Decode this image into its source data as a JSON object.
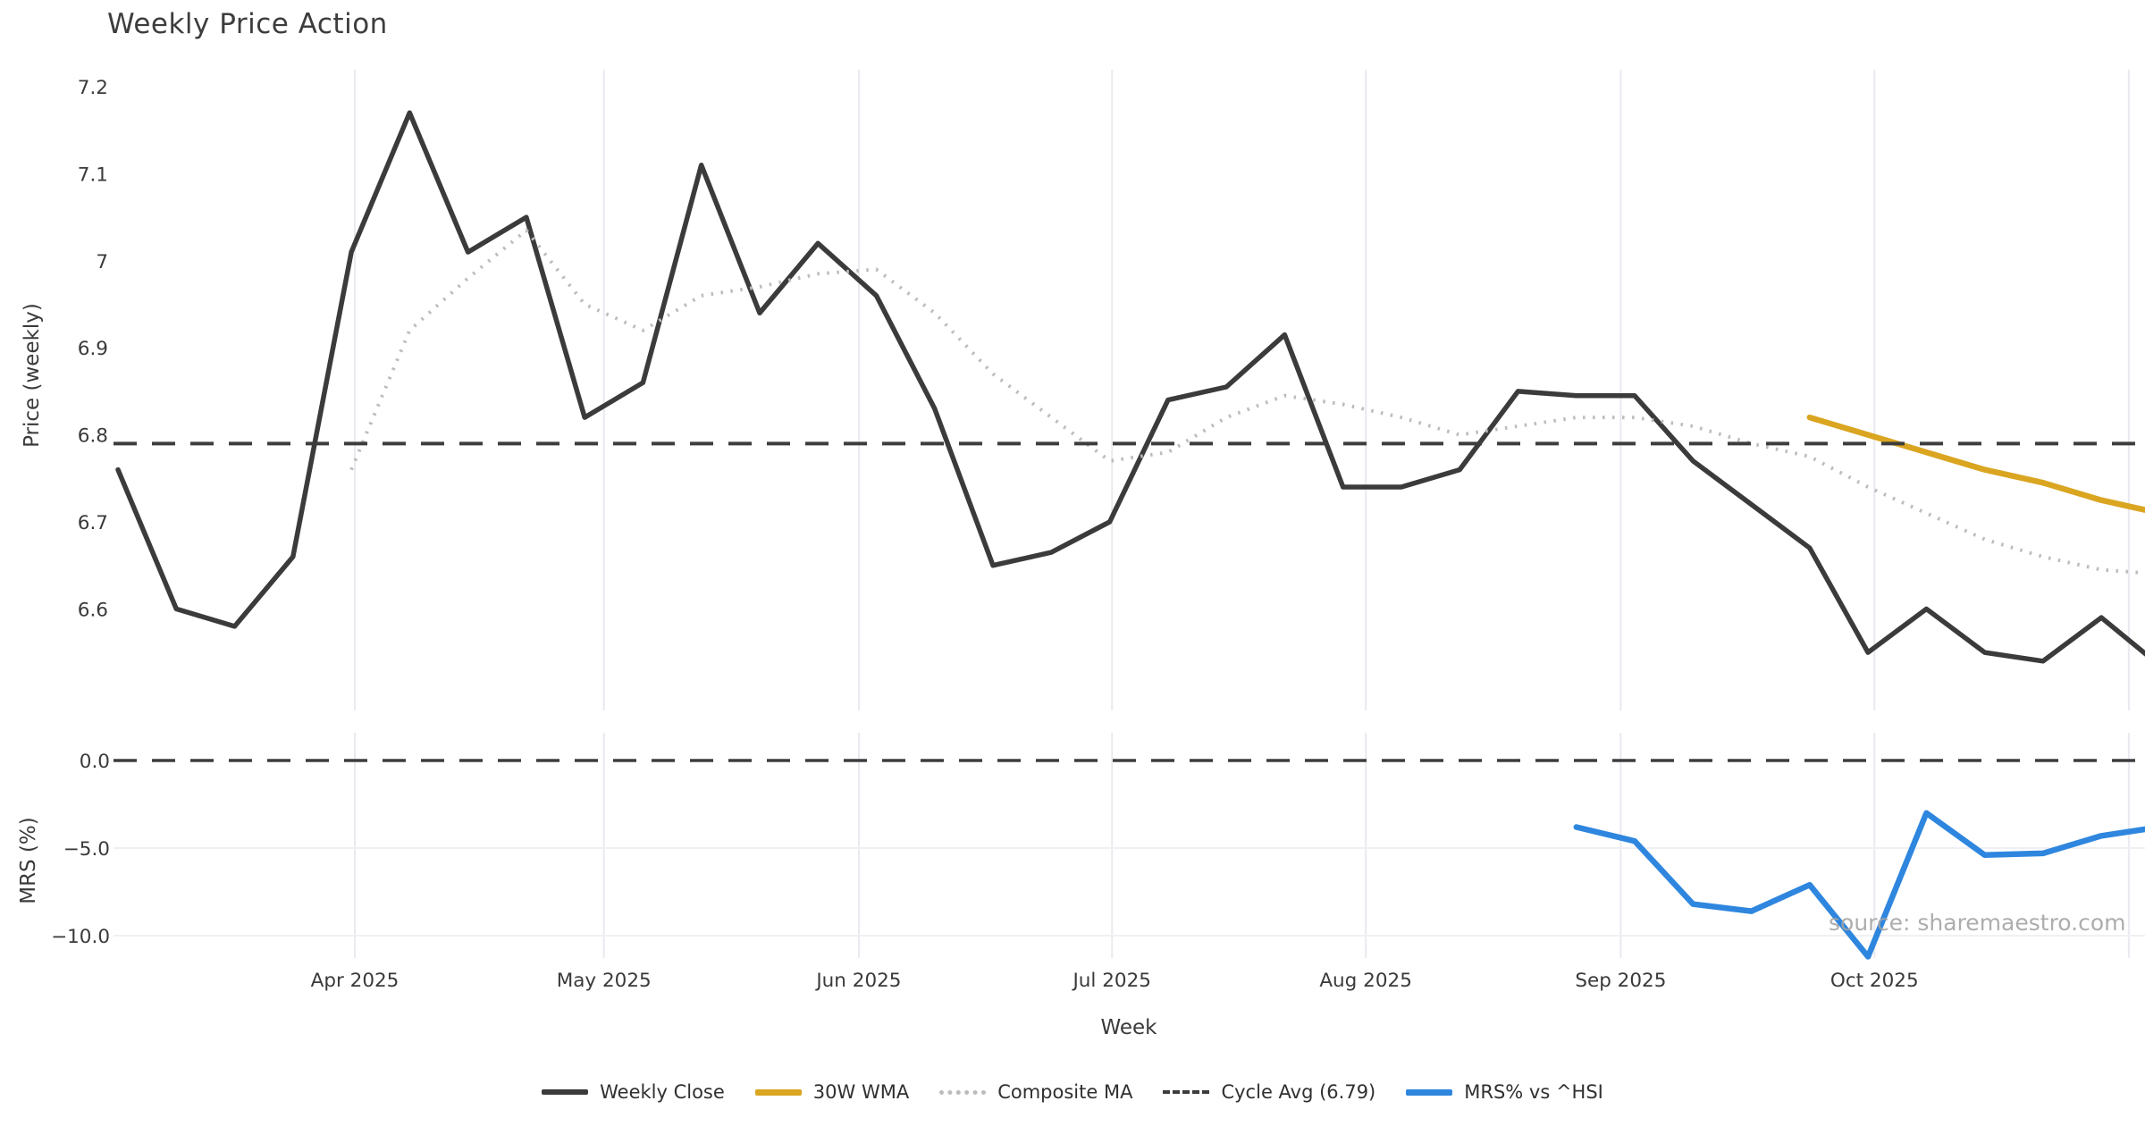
{
  "title": "Weekly Price Action",
  "source_note": "source: sharemaestro.com",
  "legend": {
    "entries": [
      {
        "label": "Weekly Close",
        "swatch": "solid-dark"
      },
      {
        "label": "30W WMA",
        "swatch": "solid-gold"
      },
      {
        "label": "Composite MA",
        "swatch": "dotted"
      },
      {
        "label": "Cycle Avg (6.79)",
        "swatch": "dashed"
      },
      {
        "label": "MRS% vs ^HSI",
        "swatch": "solid-blue"
      }
    ]
  },
  "chart_data": {
    "type": "line",
    "title": "Weekly Price Action",
    "xlabel": "Week",
    "x_axis": {
      "tick_labels": [
        "Apr 2025",
        "May 2025",
        "Jun 2025",
        "Jul 2025",
        "Aug 2025",
        "Sep 2025",
        "Oct 2025"
      ],
      "tick_week_positions": [
        4.06,
        8.33,
        12.7,
        17.04,
        21.39,
        25.76,
        30.11
      ],
      "extra_gridline_week_positions": [
        34.47
      ],
      "num_weeks": 36,
      "grid": true
    },
    "price_panel": {
      "ylabel": "Price (weekly)",
      "ytick_labels": [
        "7.2",
        "7.1",
        "7",
        "6.9",
        "6.8",
        "6.7",
        "6.6"
      ],
      "ytick_values": [
        7.2,
        7.1,
        7.0,
        6.9,
        6.8,
        6.7,
        6.6
      ],
      "ylim": [
        6.49,
        7.235
      ]
    },
    "mrs_panel": {
      "ylabel": "MRS (%)",
      "ytick_labels": [
        "0.0",
        "−5.0",
        "−10.0"
      ],
      "ytick_values": [
        0,
        -5,
        -10
      ],
      "ylim": [
        -11.6,
        0.6
      ]
    },
    "series": [
      {
        "name": "Weekly Close",
        "panel": "price",
        "style": "solid",
        "color": "#3b3b3b",
        "width": 5.5,
        "start_week": 0,
        "values": [
          6.76,
          6.6,
          6.58,
          6.66,
          7.01,
          7.17,
          7.01,
          7.05,
          6.82,
          6.86,
          7.11,
          6.94,
          7.02,
          6.96,
          6.83,
          6.65,
          6.665,
          6.7,
          6.84,
          6.855,
          6.915,
          6.74,
          6.74,
          6.76,
          6.85,
          6.845,
          6.845,
          6.77,
          6.72,
          6.67,
          6.55,
          6.6,
          6.55,
          6.54,
          6.59,
          6.535
        ]
      },
      {
        "name": "30W WMA",
        "panel": "price",
        "style": "solid",
        "color": "#DAA520",
        "width": 6.5,
        "start_week": 29,
        "values": [
          6.82,
          6.8,
          6.78,
          6.76,
          6.745,
          6.725,
          6.71
        ]
      },
      {
        "name": "Composite MA",
        "panel": "price",
        "style": "dotted",
        "color": "#bcbcbc",
        "width": 4,
        "start_week": 4,
        "values": [
          6.76,
          6.92,
          6.98,
          7.035,
          6.95,
          6.92,
          6.96,
          6.97,
          6.985,
          6.99,
          6.94,
          6.87,
          6.82,
          6.77,
          6.78,
          6.82,
          6.845,
          6.835,
          6.82,
          6.8,
          6.81,
          6.82,
          6.82,
          6.81,
          6.79,
          6.775,
          6.74,
          6.71,
          6.68,
          6.66,
          6.645,
          6.64
        ]
      },
      {
        "name": "Cycle Avg (6.79)",
        "panel": "price",
        "style": "dashed",
        "color": "#3d3d3d",
        "width": 4,
        "ref_value": 6.79
      },
      {
        "name": "MRS% vs ^HSI",
        "panel": "mrs",
        "style": "solid",
        "color": "#2E86DE",
        "width": 6.5,
        "start_week": 25,
        "values": [
          -3.8,
          -4.6,
          -8.2,
          -8.6,
          -7.1,
          -11.2,
          -3.0,
          -5.4,
          -5.3,
          -4.3,
          -3.8
        ]
      },
      {
        "name": "MRS zero line",
        "panel": "mrs",
        "style": "dashed",
        "color": "#3d3d3d",
        "width": 3.5,
        "ref_value": 0
      }
    ],
    "grid_color": "#e9e9f0",
    "legend_position": "bottom-center"
  }
}
